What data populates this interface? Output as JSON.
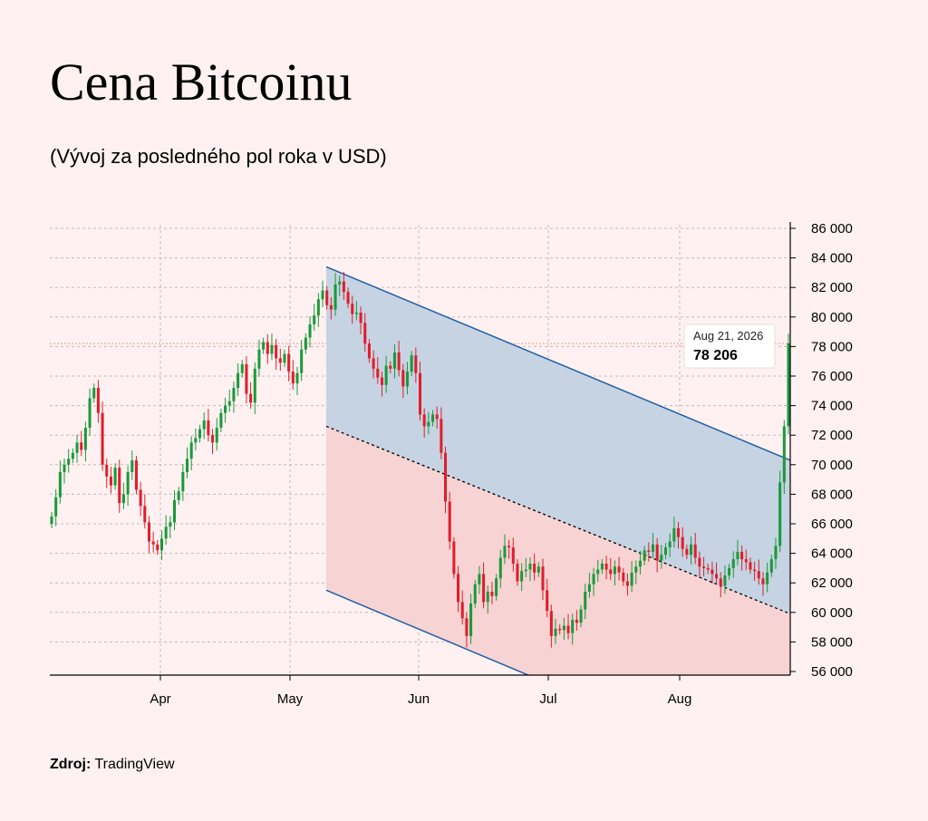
{
  "title": "Cena Bitcoinu",
  "subtitle": "(Vývoj za posledného pol roka v USD)",
  "source": {
    "label": "Zdroj:",
    "value": "TradingView"
  },
  "tooltip": {
    "date": "Aug 21, 2026",
    "value": "78 206"
  },
  "colors": {
    "up": "#1a9a3a",
    "down": "#e01e2b",
    "channel_line": "#1f5fa8",
    "upper_fill": "#c6d3e2",
    "lower_fill": "#f7d3d3",
    "grid": "#c8b9b9",
    "price_line": "#f0a0a0"
  },
  "chart_data": {
    "type": "candlestick",
    "y_ticks": [
      "86 000",
      "84 000",
      "82 000",
      "80 000",
      "78 000",
      "76 000",
      "74 000",
      "72 000",
      "70 000",
      "68 000",
      "66 000",
      "64 000",
      "62 000",
      "60 000",
      "58 000",
      "56 000"
    ],
    "x_ticks": [
      "Apr",
      "May",
      "Jun",
      "Jul",
      "Aug"
    ],
    "ylim": [
      55700,
      86000
    ],
    "last_price": 78206,
    "channel": {
      "upper": {
        "start": 83400,
        "end": 70300
      },
      "mid": {
        "start": 72600,
        "end": 59900
      },
      "lower": {
        "start": 61500,
        "end": 48300
      }
    },
    "close": [
      66500,
      67800,
      69500,
      70000,
      70400,
      70800,
      71500,
      71000,
      72500,
      74500,
      75200,
      73500,
      70000,
      69200,
      68600,
      69800,
      67400,
      68000,
      69500,
      70300,
      68300,
      67200,
      66100,
      64800,
      64600,
      64200,
      65000,
      65800,
      66100,
      67600,
      68200,
      69500,
      70400,
      71500,
      71800,
      72400,
      73000,
      72000,
      71500,
      72500,
      73500,
      74000,
      74300,
      75200,
      76200,
      76800,
      74800,
      74200,
      76500,
      77800,
      78300,
      77500,
      78100,
      77200,
      76900,
      77500,
      76300,
      75500,
      76200,
      77800,
      78600,
      79500,
      80100,
      81200,
      81800,
      80800,
      80500,
      82200,
      82400,
      81700,
      80900,
      80200,
      80300,
      79600,
      78200,
      77200,
      76500,
      75900,
      75400,
      76700,
      76500,
      77600,
      76400,
      75300,
      76300,
      77400,
      76200,
      73400,
      72600,
      72900,
      73400,
      73100,
      70800,
      67500,
      64800,
      62600,
      60700,
      59600,
      58400,
      60600,
      61900,
      62600,
      60700,
      61400,
      61100,
      62300,
      63700,
      64500,
      64400,
      63300,
      62100,
      62800,
      62900,
      63300,
      62700,
      63100,
      61500,
      60100,
      58400,
      58900,
      58800,
      59100,
      58600,
      59500,
      59300,
      60200,
      61400,
      61900,
      62600,
      62900,
      63300,
      62900,
      62600,
      63100,
      62700,
      62100,
      61800,
      62700,
      63100,
      63500,
      64200,
      64100,
      64600,
      63500,
      63900,
      64400,
      64800,
      65700,
      65100,
      64300,
      63900,
      64600,
      63700,
      63100,
      63000,
      62900,
      62600,
      62300,
      61800,
      62500,
      63000,
      63600,
      64100,
      63600,
      63400,
      62900,
      62800,
      62300,
      61900,
      62700,
      63600,
      64500,
      68800,
      72600,
      78206
    ],
    "x_range": [
      "Mar 1, 2026",
      "Aug 21, 2026"
    ]
  }
}
